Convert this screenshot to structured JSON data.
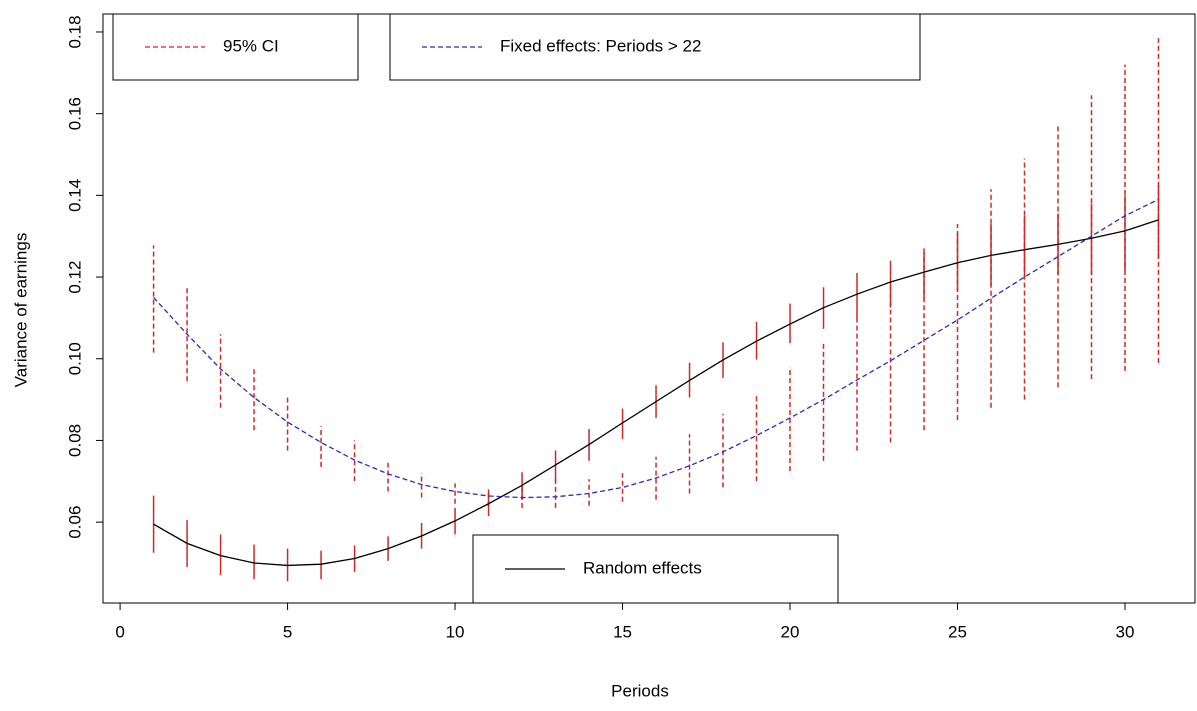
{
  "chart_data": {
    "type": "line",
    "xlabel": "Periods",
    "ylabel": "Variance of earnings",
    "x": [
      1,
      2,
      3,
      4,
      5,
      6,
      7,
      8,
      9,
      10,
      11,
      12,
      13,
      14,
      15,
      16,
      17,
      18,
      19,
      20,
      21,
      22,
      23,
      24,
      25,
      26,
      27,
      28,
      29,
      30,
      31
    ],
    "xlim": [
      -0.51,
      32.09
    ],
    "xticks": [
      0,
      5,
      10,
      15,
      20,
      25,
      30
    ],
    "ylim": [
      0.0402,
      0.1844
    ],
    "yticks": [
      0.06,
      0.08,
      {
        "value": 0.1,
        "label": "0.10"
      },
      0.12,
      0.14,
      0.16,
      0.18
    ],
    "ci_name": "95% CI",
    "ci_color": "#cc2929",
    "series": [
      {
        "name": "Random effects",
        "color": "#000000",
        "dashed": false,
        "values": [
          0.0595,
          0.0548,
          0.0518,
          0.05,
          0.0494,
          0.0497,
          0.0511,
          0.0535,
          0.0566,
          0.0603,
          0.0645,
          0.069,
          0.074,
          0.079,
          0.0843,
          0.0895,
          0.0947,
          0.0997,
          0.1043,
          0.1085,
          0.1125,
          0.1158,
          0.1188,
          0.1212,
          0.1235,
          0.1253,
          0.1267,
          0.128,
          0.1295,
          0.1313,
          0.134
        ],
        "lower": [
          0.0525,
          0.049,
          0.047,
          0.046,
          0.0455,
          0.046,
          0.0478,
          0.0505,
          0.0535,
          0.057,
          0.0615,
          0.0655,
          0.07,
          0.075,
          0.0803,
          0.0855,
          0.0905,
          0.0953,
          0.0998,
          0.1038,
          0.1073,
          0.11,
          0.1125,
          0.1147,
          0.1165,
          0.118,
          0.1195,
          0.1205,
          0.1205,
          0.1215,
          0.1245
        ],
        "upper": [
          0.0665,
          0.0605,
          0.057,
          0.0545,
          0.0535,
          0.053,
          0.0543,
          0.0565,
          0.0598,
          0.0635,
          0.068,
          0.0722,
          0.0775,
          0.0828,
          0.0878,
          0.0935,
          0.099,
          0.104,
          0.109,
          0.1135,
          0.1175,
          0.121,
          0.124,
          0.127,
          0.1305,
          0.133,
          0.135,
          0.1355,
          0.138,
          0.14,
          0.1425
        ]
      },
      {
        "name": "Fixed effects: Periods > 22",
        "color": "#2a2ab8",
        "dashed": true,
        "values": [
          0.115,
          0.106,
          0.0975,
          0.0905,
          0.0845,
          0.0795,
          0.0752,
          0.0718,
          0.0692,
          0.0675,
          0.0664,
          0.066,
          0.0662,
          0.067,
          0.0685,
          0.0708,
          0.0738,
          0.0772,
          0.0812,
          0.0855,
          0.09,
          0.0948,
          0.0995,
          0.1045,
          0.1095,
          0.1148,
          0.12,
          0.125,
          0.13,
          0.135,
          0.139
        ],
        "lower": [
          0.1015,
          0.0945,
          0.088,
          0.0825,
          0.0775,
          0.0735,
          0.07,
          0.0675,
          0.066,
          0.0645,
          0.064,
          0.0635,
          0.0635,
          0.064,
          0.065,
          0.0655,
          0.067,
          0.0685,
          0.07,
          0.0725,
          0.075,
          0.0775,
          0.0795,
          0.0825,
          0.085,
          0.088,
          0.09,
          0.093,
          0.095,
          0.097,
          0.099
        ],
        "upper": [
          0.1278,
          0.118,
          0.106,
          0.098,
          0.0905,
          0.0835,
          0.08,
          0.0745,
          0.072,
          0.0695,
          0.068,
          0.069,
          0.071,
          0.0705,
          0.072,
          0.076,
          0.0815,
          0.0865,
          0.0915,
          0.098,
          0.104,
          0.1105,
          0.1185,
          0.126,
          0.133,
          0.1415,
          0.149,
          0.157,
          0.1645,
          0.172,
          0.1785
        ]
      }
    ]
  }
}
